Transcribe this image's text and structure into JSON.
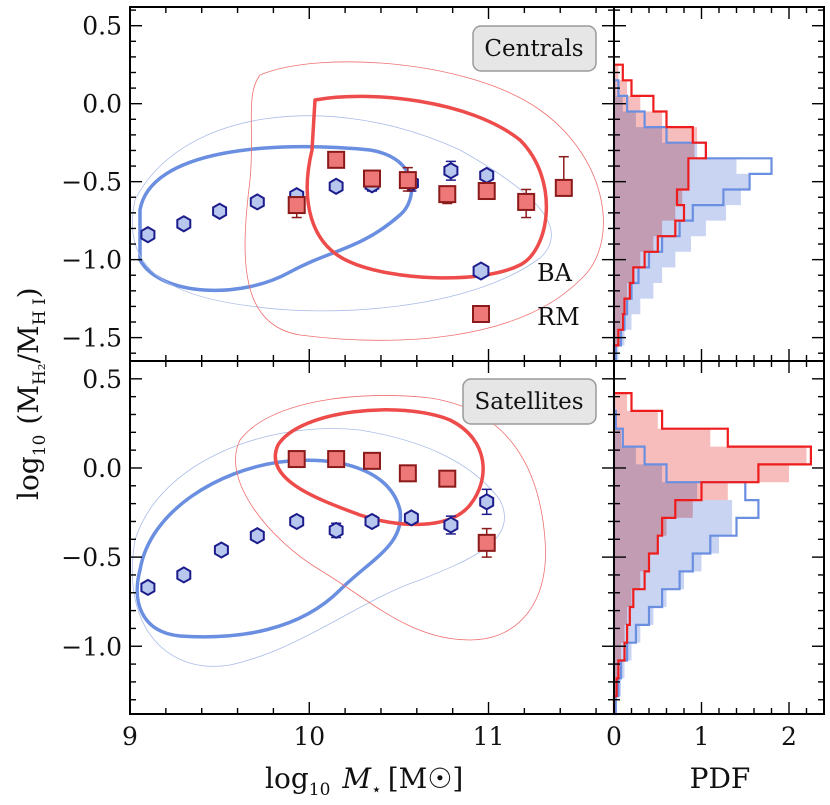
{
  "figure": {
    "xlabel": "log₁₀ M⋆ [M☉]",
    "xlabel_parts": {
      "prefix": "log",
      "sub": "10",
      "var": "M",
      "star": "⋆",
      "unit": "[M☉]"
    },
    "ylabel_parts": {
      "prefix": "log",
      "sub": "10",
      "open": "(M",
      "sub1": "H₂",
      "slash": "/M",
      "sub2": "H I",
      "close": ")"
    },
    "pdf_label": "PDF",
    "legend": [
      {
        "label": "BA",
        "marker": "hexagon",
        "color": "#b8c7ee",
        "edge": "#1c1c8c"
      },
      {
        "label": "RM",
        "marker": "square",
        "color": "#ee7777",
        "edge": "#8b1a1a"
      }
    ],
    "colors": {
      "ba": "#6a8ee0",
      "ba_light": "#aabde8",
      "rm": "#ee4b4b",
      "rm_light": "#f07070",
      "ba_hist_fill": "#c3cff2",
      "rm_hist_fill": "#f4a6a6"
    }
  },
  "chart_data": [
    {
      "type": "scatter",
      "panel": "Centrals",
      "title": "Centrals",
      "xlim": [
        9,
        11.7
      ],
      "ylim": [
        -1.65,
        0.62
      ],
      "xticks": [
        "9",
        "10",
        "11"
      ],
      "yticks": [
        "0.5",
        "0.0",
        "−0.5",
        "−1.0",
        "−1.5"
      ],
      "ytick_values": [
        0.5,
        0.0,
        -0.5,
        -1.0,
        -1.5
      ],
      "series": [
        {
          "name": "BA",
          "x": [
            9.1,
            9.3,
            9.5,
            9.71,
            9.93,
            10.15,
            10.35,
            10.57,
            10.79,
            10.99
          ],
          "y": [
            -0.84,
            -0.77,
            -0.69,
            -0.63,
            -0.59,
            -0.53,
            -0.52,
            -0.51,
            -0.43,
            -0.46
          ],
          "err": [
            0,
            0,
            0,
            0,
            0,
            0,
            0.04,
            0.05,
            0.06,
            0.03
          ]
        },
        {
          "name": "RM",
          "x": [
            9.93,
            10.15,
            10.35,
            10.55,
            10.77,
            10.99,
            11.21,
            11.42
          ],
          "y": [
            -0.65,
            -0.36,
            -0.48,
            -0.49,
            -0.58,
            -0.56,
            -0.63,
            -0.54
          ],
          "err_up": [
            0.0,
            0.05,
            0.03,
            0.08,
            0.04,
            0.03,
            0.08,
            0.2
          ],
          "err_dn": [
            0.08,
            0.0,
            0.04,
            0.07,
            0.06,
            0.0,
            0.1,
            0.0
          ]
        }
      ],
      "pdf": {
        "xlim": [
          0,
          2.4
        ],
        "xticks": [
          "0",
          "1",
          "2"
        ],
        "bins": [
          -1.65,
          -1.55,
          -1.45,
          -1.35,
          -1.25,
          -1.15,
          -1.05,
          -0.95,
          -0.85,
          -0.75,
          -0.65,
          -0.55,
          -0.45,
          -0.35,
          -0.25,
          -0.15,
          -0.05,
          0.05,
          0.15,
          0.25
        ],
        "ba_line": [
          0.02,
          0.08,
          0.12,
          0.15,
          0.2,
          0.28,
          0.4,
          0.55,
          0.75,
          0.9,
          1.25,
          1.55,
          1.8,
          1.05,
          0.6,
          0.35,
          0.15,
          0.05,
          0.0
        ],
        "ba_fill": [
          0.05,
          0.12,
          0.2,
          0.3,
          0.45,
          0.55,
          0.7,
          0.88,
          1.05,
          1.28,
          1.45,
          1.55,
          1.4,
          0.95,
          0.55,
          0.25,
          0.1,
          0.02,
          0.0
        ],
        "rm_line": [
          0.0,
          0.05,
          0.1,
          0.12,
          0.18,
          0.22,
          0.35,
          0.5,
          0.7,
          0.8,
          0.72,
          0.85,
          0.85,
          1.05,
          0.9,
          0.6,
          0.45,
          0.2,
          0.1
        ],
        "rm_fill": [
          0.0,
          0.04,
          0.08,
          0.12,
          0.15,
          0.22,
          0.3,
          0.45,
          0.55,
          0.7,
          0.78,
          0.85,
          0.85,
          0.92,
          0.95,
          0.55,
          0.3,
          0.15,
          0.05
        ]
      }
    },
    {
      "type": "scatter",
      "panel": "Satellites",
      "title": "Satellites",
      "xlim": [
        9,
        11.7
      ],
      "ylim": [
        -1.38,
        0.6
      ],
      "xticks": [
        "9",
        "10",
        "11"
      ],
      "yticks": [
        "0.5",
        "0.0",
        "−0.5",
        "−1.0"
      ],
      "ytick_values": [
        0.5,
        0.0,
        -0.5,
        -1.0
      ],
      "series": [
        {
          "name": "BA",
          "x": [
            9.1,
            9.3,
            9.51,
            9.71,
            9.93,
            10.15,
            10.35,
            10.57,
            10.79,
            10.99
          ],
          "y": [
            -0.67,
            -0.6,
            -0.46,
            -0.38,
            -0.3,
            -0.35,
            -0.3,
            -0.28,
            -0.32,
            -0.19
          ],
          "err": [
            0,
            0,
            0,
            0,
            0.03,
            0.04,
            0.03,
            0.03,
            0.05,
            0.07
          ]
        },
        {
          "name": "RM",
          "x": [
            9.93,
            10.15,
            10.35,
            10.55,
            10.77,
            10.99
          ],
          "y": [
            0.05,
            0.05,
            0.04,
            -0.03,
            -0.06,
            -0.42
          ],
          "err_up": [
            0.0,
            0.0,
            0.0,
            0.03,
            0.0,
            0.08
          ],
          "err_dn": [
            0.0,
            0.0,
            0.0,
            0.04,
            0.0,
            0.08
          ]
        }
      ],
      "pdf": {
        "xlim": [
          0,
          2.4
        ],
        "xticks": [
          "0",
          "1",
          "2"
        ],
        "bins": [
          -1.38,
          -1.28,
          -1.18,
          -1.08,
          -0.98,
          -0.88,
          -0.78,
          -0.68,
          -0.58,
          -0.48,
          -0.38,
          -0.28,
          -0.18,
          -0.08,
          0.02,
          0.12,
          0.22,
          0.32,
          0.42
        ],
        "ba_line": [
          0.02,
          0.05,
          0.08,
          0.15,
          0.25,
          0.4,
          0.55,
          0.75,
          0.9,
          1.1,
          1.4,
          1.65,
          1.5,
          0.6,
          0.35,
          0.1,
          0.02,
          0.0
        ],
        "ba_fill": [
          0.03,
          0.08,
          0.12,
          0.2,
          0.3,
          0.45,
          0.6,
          0.8,
          1.0,
          1.2,
          1.35,
          1.35,
          0.95,
          0.55,
          0.25,
          0.08,
          0.02,
          0.0
        ],
        "rm_line": [
          0.0,
          0.03,
          0.05,
          0.12,
          0.15,
          0.18,
          0.22,
          0.35,
          0.4,
          0.5,
          0.55,
          0.7,
          1.0,
          1.65,
          2.25,
          1.3,
          0.55,
          0.2
        ],
        "rm_fill": [
          0.0,
          0.02,
          0.04,
          0.08,
          0.12,
          0.15,
          0.2,
          0.3,
          0.4,
          0.5,
          0.6,
          0.9,
          1.3,
          2.0,
          2.2,
          1.1,
          0.5,
          0.15
        ]
      }
    }
  ]
}
